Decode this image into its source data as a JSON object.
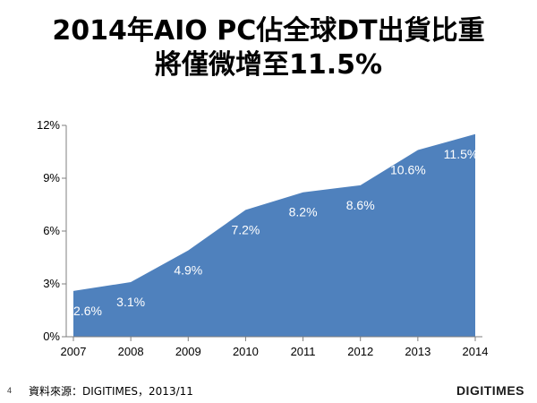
{
  "title": {
    "line1": "2014年AIO PC佔全球DT出貨比重",
    "line2": "將僅微增至11.5%"
  },
  "footer": {
    "page_number": "4",
    "source": "資料來源：DIGITIMES，2013/11",
    "logo": "DIGITIMES"
  },
  "colors": {
    "area": "#4f81bd",
    "data_label": "#ffffff",
    "axis": "#7f7f7f"
  },
  "chart_data": {
    "type": "area",
    "x": [
      "2007",
      "2008",
      "2009",
      "2010",
      "2011",
      "2012",
      "2013",
      "2014"
    ],
    "series": [
      {
        "values": [
          2.6,
          3.1,
          4.9,
          7.2,
          8.2,
          8.6,
          10.6,
          11.5
        ],
        "labels": [
          "2.6%",
          "3.1%",
          "4.9%",
          "7.2%",
          "8.2%",
          "8.6%",
          "10.6%",
          "11.5%"
        ]
      }
    ],
    "ylim": [
      0,
      12
    ],
    "yticks": [
      0,
      3,
      6,
      9,
      12
    ],
    "ytick_labels": [
      "0%",
      "3%",
      "6%",
      "9%",
      "12%"
    ],
    "grid": false,
    "legend": "none"
  }
}
